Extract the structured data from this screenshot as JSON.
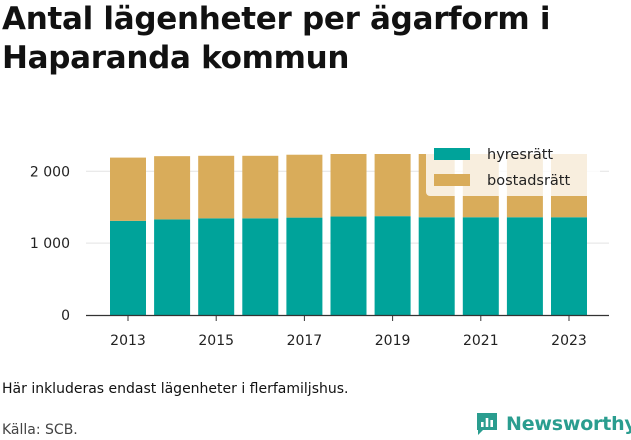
{
  "title": "Antal lägenheter per ägarform i Haparanda kommun",
  "footnote": "Här inkluderas endast lägenheter i flerfamiljshus.",
  "source": "Källa: SCB.",
  "brand": "Newsworthy",
  "colors": {
    "hyresratt": "#00a39a",
    "bostadsratt": "#d9ac5a",
    "grid": "#e3e3e3",
    "brand": "#2a9d8f"
  },
  "chart_data": {
    "type": "bar",
    "stacked": true,
    "categories": [
      2013,
      2014,
      2015,
      2016,
      2017,
      2018,
      2019,
      2020,
      2021,
      2022,
      2023
    ],
    "x_tick_labels": [
      "2013",
      "2015",
      "2017",
      "2019",
      "2021",
      "2023"
    ],
    "y_tick_labels": [
      "0",
      "1 000",
      "2 000"
    ],
    "y_ticks": [
      0,
      1000,
      2000
    ],
    "ylim": [
      0,
      2400
    ],
    "grid": true,
    "legend_position": "top-right",
    "series": [
      {
        "name": "hyresrätt",
        "values": [
          1310,
          1330,
          1345,
          1345,
          1355,
          1370,
          1375,
          1360,
          1360,
          1360,
          1360
        ]
      },
      {
        "name": "bostadsrätt",
        "values": [
          880,
          880,
          870,
          870,
          875,
          870,
          865,
          880,
          880,
          880,
          880
        ]
      }
    ]
  }
}
